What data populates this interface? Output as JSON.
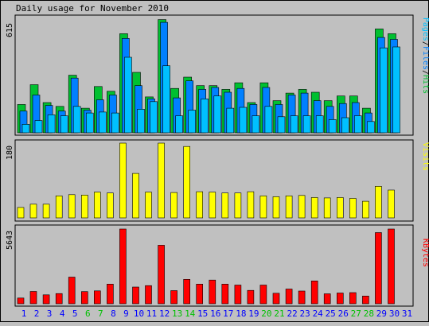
{
  "chart_data": {
    "type": "bar",
    "title": "Daily usage for November 2010",
    "days": [
      "1",
      "2",
      "3",
      "4",
      "5",
      "6",
      "7",
      "8",
      "9",
      "10",
      "11",
      "12",
      "13",
      "14",
      "15",
      "16",
      "17",
      "18",
      "19",
      "20",
      "21",
      "22",
      "23",
      "24",
      "25",
      "26",
      "27",
      "28",
      "29",
      "30",
      "31"
    ],
    "weekend_days": [
      "6",
      "7",
      "13",
      "14",
      "20",
      "21",
      "27",
      "28"
    ],
    "panels": [
      {
        "id": "hits-files-pages",
        "ymax_label": "615",
        "ymax": 615,
        "legend": [
          "Pages",
          "/",
          "Files",
          "/",
          "Hits"
        ],
        "series": [
          {
            "name": "Hits",
            "color": "#00c030",
            "values": [
              150,
              255,
              160,
              140,
              305,
              130,
              245,
              220,
              525,
              320,
              190,
              600,
              235,
              295,
              250,
              250,
              230,
              265,
              160,
              265,
              170,
              210,
              230,
              215,
              170,
              195,
              195,
              130,
              550,
              525,
              0
            ]
          },
          {
            "name": "Files",
            "color": "#0080ff",
            "values": [
              115,
              200,
              145,
              115,
              290,
              120,
              175,
              200,
              500,
              250,
              180,
              585,
              185,
              275,
              230,
              240,
              215,
              235,
              150,
              240,
              150,
              200,
              210,
              170,
              140,
              155,
              160,
              105,
              505,
              495,
              0
            ]
          },
          {
            "name": "Pages",
            "color": "#00c0ff",
            "values": [
              45,
              65,
              95,
              90,
              140,
              105,
              110,
              105,
              400,
              125,
              165,
              355,
              90,
              120,
              180,
              195,
              130,
              135,
              90,
              140,
              85,
              90,
              90,
              90,
              70,
              80,
              90,
              60,
              450,
              455,
              0
            ]
          }
        ]
      },
      {
        "id": "visits",
        "ymax_label": "180",
        "ymax": 180,
        "legend": [
          "Visits"
        ],
        "series": [
          {
            "name": "Visits",
            "color": "#ffff00",
            "values": [
              25,
              33,
              33,
              53,
              56,
              55,
              62,
              60,
              180,
              107,
              62,
              180,
              61,
              172,
              63,
              62,
              60,
              60,
              63,
              53,
              51,
              53,
              54,
              49,
              48,
              49,
              47,
              40,
              76,
              67,
              0
            ]
          }
        ]
      },
      {
        "id": "kbytes",
        "ymax_label": "5643",
        "ymax": 5643,
        "legend": [
          "KBytes"
        ],
        "series": [
          {
            "name": "KBytes",
            "color": "#ff0000",
            "values": [
              430,
              930,
              670,
              770,
              2010,
              920,
              970,
              1480,
              5643,
              1260,
              1370,
              4420,
              990,
              1840,
              1480,
              1790,
              1480,
              1410,
              1010,
              1410,
              790,
              1110,
              960,
              1720,
              750,
              810,
              840,
              580,
              5370,
              5640,
              0
            ]
          }
        ]
      }
    ],
    "colors": {
      "background": "#c0c0c0",
      "plot_background": "#c0c0c0",
      "weekday_label": "#0000ff",
      "weekend_label": "#00c000",
      "text": "#000000",
      "pages_legend": "#00c0ff",
      "files_legend": "#0080ff",
      "hits_legend": "#00c030",
      "visits_legend": "#ffff00",
      "kbytes_legend": "#ff0000"
    }
  }
}
